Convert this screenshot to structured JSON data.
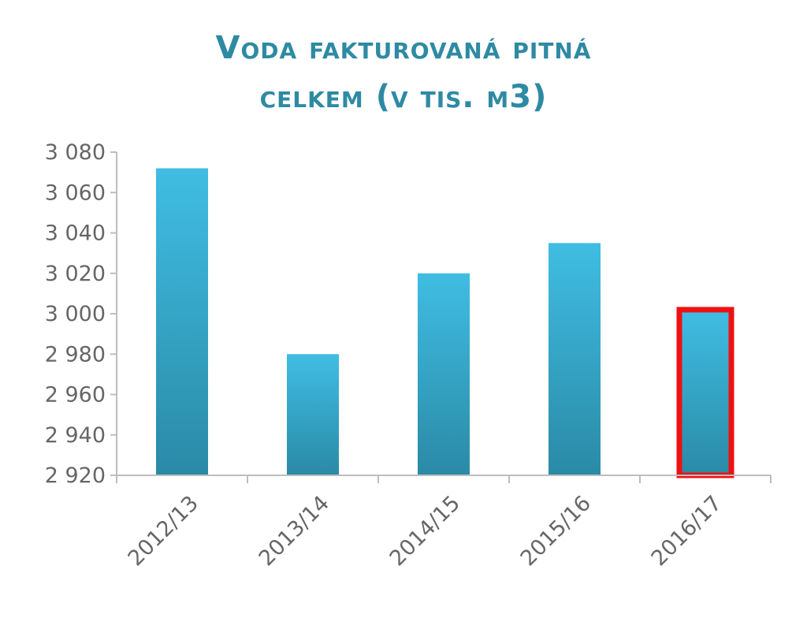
{
  "chart_data": {
    "type": "bar",
    "title_line1": "Voda fakturovaná pitná",
    "title_line2": "celkem (v tis. m3)",
    "categories": [
      "2012/13",
      "2013/14",
      "2014/15",
      "2015/16",
      "2016/17"
    ],
    "values": [
      3072,
      2980,
      3020,
      3035,
      3002
    ],
    "highlighted_category": "2016/17",
    "ylim": [
      2920,
      3080
    ],
    "yticks": [
      2920,
      2940,
      2960,
      2980,
      3000,
      3020,
      3040,
      3060,
      3080
    ],
    "ytick_labels": [
      "2 920",
      "2 940",
      "2 960",
      "2 980",
      "3 000",
      "3 020",
      "3 040",
      "3 060",
      "3 080"
    ],
    "grid": false,
    "legend": "none",
    "colors": {
      "bar_top": "#40bde3",
      "bar_bottom": "#2a8aa6",
      "highlight_outline": "#ee1111",
      "title": "#2e8aa3",
      "axis": "#bdbdbd",
      "tick_text": "#666666"
    }
  }
}
